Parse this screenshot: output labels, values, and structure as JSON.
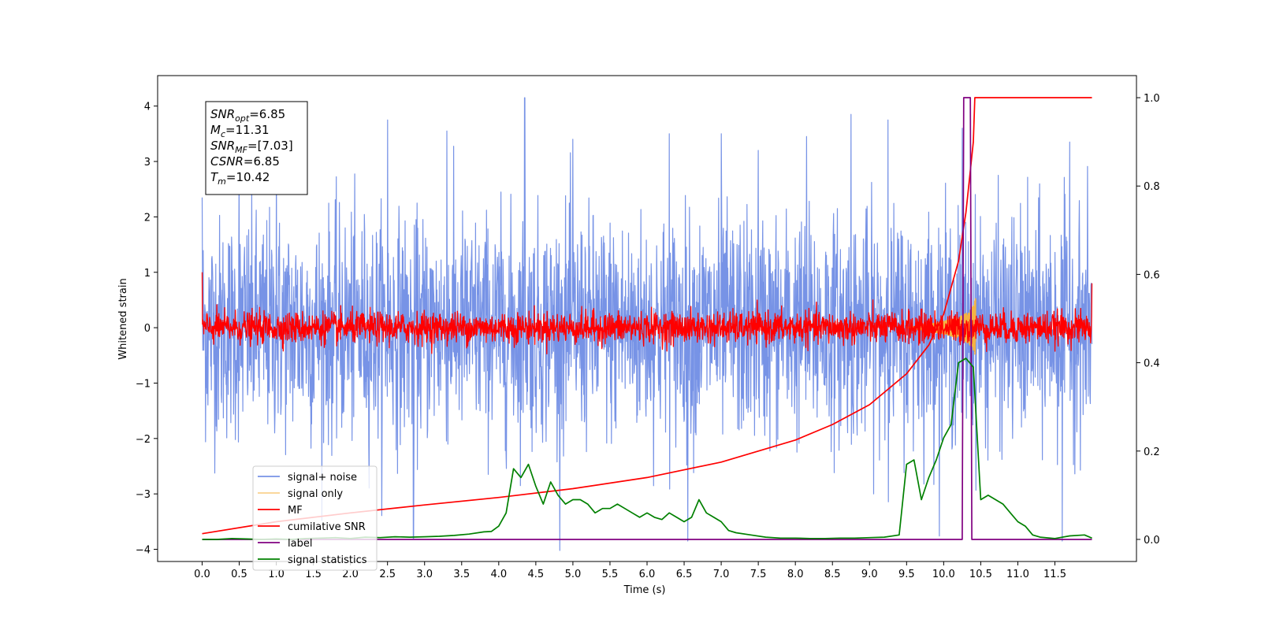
{
  "chart_data": {
    "type": "line",
    "xlabel": "Time (s)",
    "ylabel_left": "Whitened strain",
    "ylabel_right": "",
    "xlim": [
      -0.6,
      12.6
    ],
    "ylim_left": [
      -4.22,
      4.55
    ],
    "ylim_right": [
      -0.05,
      1.05
    ],
    "x_ticks": [
      "0.0",
      "0.5",
      "1.0",
      "1.5",
      "2.0",
      "2.5",
      "3.0",
      "3.5",
      "4.0",
      "4.5",
      "5.0",
      "5.5",
      "6.0",
      "6.5",
      "7.0",
      "7.5",
      "8.0",
      "8.5",
      "9.0",
      "9.5",
      "10.0",
      "10.5",
      "11.0",
      "11.5"
    ],
    "y_ticks_left": [
      "4",
      "3",
      "2",
      "1",
      "0",
      "−1",
      "−2",
      "−3",
      "−4"
    ],
    "y_ticks_right": [
      "1.0",
      "0.8",
      "0.6",
      "0.4",
      "0.2",
      "0.0"
    ],
    "grid": false,
    "legend_position": "bottom-left",
    "stats_box": {
      "lines": [
        {
          "name": "SNR",
          "sub": "opt",
          "value": "=6.85"
        },
        {
          "name": "M",
          "sub": "c",
          "value": "=11.31"
        },
        {
          "name": "SNR",
          "sub": "MF",
          "value": "=[7.03]"
        },
        {
          "name": "CSNR",
          "sub": "",
          "value": "=6.85"
        },
        {
          "name": "T",
          "sub": "m",
          "value": "=10.42"
        }
      ]
    },
    "series": [
      {
        "name": "signal+ noise",
        "color": "#7793e6",
        "axis": "left",
        "kind": "noise",
        "x_range": [
          0.0,
          12.0
        ],
        "amplitude_sigma": 1.0,
        "peak_values": [
          [
            0.0,
            2.35
          ],
          [
            0.5,
            2.9
          ],
          [
            1.0,
            3.2
          ],
          [
            2.5,
            3.75
          ],
          [
            2.85,
            -3.8
          ],
          [
            3.3,
            3.55
          ],
          [
            4.35,
            4.15
          ],
          [
            5.0,
            3.4
          ],
          [
            6.3,
            3.5
          ],
          [
            6.55,
            -3.85
          ],
          [
            7.0,
            3.5
          ],
          [
            7.5,
            3.2
          ],
          [
            8.15,
            3.45
          ],
          [
            8.75,
            3.85
          ],
          [
            9.25,
            3.75
          ],
          [
            10.25,
            3.6
          ],
          [
            11.6,
            -3.85
          ],
          [
            11.7,
            3.35
          ]
        ]
      },
      {
        "name": "signal only",
        "color": "#f5b342",
        "axis": "left",
        "kind": "chirp",
        "x_range": [
          9.5,
          10.43
        ],
        "peak_amplitude": 0.55
      },
      {
        "name": "MF",
        "color": "#ff0000",
        "axis": "left",
        "kind": "noise",
        "x_range": [
          0.0,
          12.0
        ],
        "amplitude_sigma": 0.14,
        "edge_values": [
          [
            0.0,
            1.0
          ],
          [
            12.0,
            0.8
          ]
        ]
      },
      {
        "name": "cumilative SNR",
        "color": "#ff0000",
        "axis": "right",
        "kind": "curve",
        "x": [
          0.0,
          1.0,
          2.0,
          3.0,
          4.0,
          5.0,
          6.0,
          7.0,
          8.0,
          8.5,
          9.0,
          9.5,
          9.8,
          10.0,
          10.2,
          10.3,
          10.4,
          10.42,
          12.0
        ],
        "y": [
          0.013,
          0.04,
          0.06,
          0.078,
          0.095,
          0.115,
          0.14,
          0.175,
          0.225,
          0.26,
          0.305,
          0.375,
          0.44,
          0.51,
          0.63,
          0.74,
          0.9,
          1.0,
          1.0
        ]
      },
      {
        "name": "label",
        "color": "#800080",
        "axis": "right",
        "kind": "curve",
        "x": [
          0.0,
          10.25,
          10.27,
          10.36,
          10.38,
          12.0
        ],
        "y": [
          0.0,
          0.0,
          1.0,
          1.0,
          0.0,
          0.0
        ]
      },
      {
        "name": "signal statistics",
        "color": "#008000",
        "axis": "right",
        "kind": "curve",
        "x": [
          0.0,
          0.2,
          0.4,
          0.6,
          0.8,
          1.0,
          1.2,
          1.4,
          1.6,
          1.8,
          2.0,
          2.2,
          2.4,
          2.6,
          2.8,
          3.0,
          3.2,
          3.4,
          3.6,
          3.8,
          3.9,
          4.0,
          4.1,
          4.2,
          4.3,
          4.4,
          4.5,
          4.6,
          4.7,
          4.8,
          4.9,
          5.0,
          5.1,
          5.2,
          5.3,
          5.4,
          5.5,
          5.6,
          5.7,
          5.8,
          5.9,
          6.0,
          6.1,
          6.2,
          6.3,
          6.4,
          6.5,
          6.6,
          6.7,
          6.8,
          6.9,
          7.0,
          7.1,
          7.2,
          7.4,
          7.6,
          7.8,
          8.0,
          8.2,
          8.4,
          8.6,
          8.8,
          9.0,
          9.2,
          9.4,
          9.5,
          9.6,
          9.7,
          9.8,
          9.9,
          10.0,
          10.1,
          10.2,
          10.3,
          10.4,
          10.5,
          10.6,
          10.7,
          10.8,
          10.9,
          11.0,
          11.1,
          11.2,
          11.3,
          11.5,
          11.7,
          11.9,
          12.0
        ],
        "y": [
          0.0,
          0.0,
          0.002,
          0.001,
          0.0,
          0.001,
          0.0,
          0.002,
          0.003,
          0.004,
          0.002,
          0.005,
          0.004,
          0.006,
          0.005,
          0.006,
          0.007,
          0.009,
          0.012,
          0.017,
          0.018,
          0.03,
          0.06,
          0.16,
          0.14,
          0.17,
          0.12,
          0.08,
          0.13,
          0.1,
          0.08,
          0.09,
          0.09,
          0.08,
          0.06,
          0.07,
          0.07,
          0.08,
          0.07,
          0.06,
          0.05,
          0.06,
          0.05,
          0.045,
          0.06,
          0.05,
          0.04,
          0.05,
          0.09,
          0.06,
          0.05,
          0.04,
          0.02,
          0.015,
          0.01,
          0.005,
          0.003,
          0.003,
          0.002,
          0.002,
          0.003,
          0.003,
          0.004,
          0.005,
          0.01,
          0.17,
          0.18,
          0.09,
          0.14,
          0.18,
          0.23,
          0.26,
          0.4,
          0.41,
          0.39,
          0.09,
          0.1,
          0.09,
          0.08,
          0.06,
          0.04,
          0.03,
          0.01,
          0.005,
          0.002,
          0.008,
          0.01,
          0.003
        ]
      }
    ]
  }
}
